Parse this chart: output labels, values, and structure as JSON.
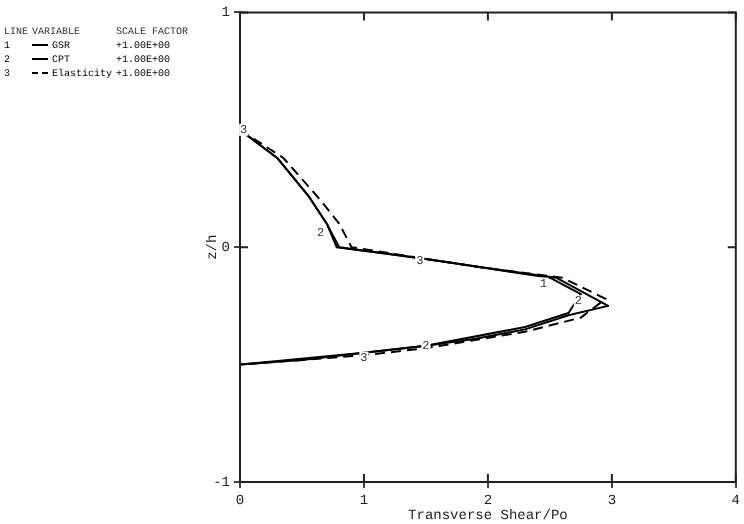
{
  "chart_data": {
    "type": "line",
    "xlabel": "Transverse Shear/Po",
    "ylabel": "z/h",
    "xlim": [
      0,
      4
    ],
    "xticks": [
      0,
      1,
      2,
      3,
      4
    ],
    "ylim": [
      -1,
      1
    ],
    "yticks": [
      -1,
      0,
      1
    ],
    "grid": false,
    "legend": "top left",
    "marker": "none",
    "series": [
      {
        "name": "GSR",
        "color": "#000000",
        "line_style": "solid",
        "x": [
          0,
          0.3,
          0.55,
          0.7,
          0.8,
          1.5,
          2.0,
          2.55,
          2.97,
          2.65,
          2.3,
          1.9,
          1.5,
          1.0,
          0.5,
          0
        ],
        "values": [
          0.5,
          0.38,
          0.22,
          0.1,
          0.0,
          -0.05,
          -0.09,
          -0.13,
          -0.25,
          -0.29,
          -0.35,
          -0.39,
          -0.42,
          -0.45,
          -0.48,
          -0.5
        ]
      },
      {
        "name": "CPT",
        "color": "#000000",
        "line_style": "solid",
        "x": [
          0,
          0.3,
          0.55,
          0.7,
          0.78,
          1.5,
          2.0,
          2.5,
          2.75,
          2.65,
          2.3,
          1.5,
          1.0,
          0
        ],
        "values": [
          0.5,
          0.38,
          0.22,
          0.1,
          0.0,
          -0.05,
          -0.09,
          -0.13,
          -0.2,
          -0.28,
          -0.34,
          -0.42,
          -0.45,
          -0.5
        ]
      },
      {
        "name": "Elasticity",
        "color": "#000000",
        "line_style": "dashed",
        "x": [
          0,
          0.35,
          0.65,
          0.8,
          0.9,
          1.5,
          2.0,
          2.6,
          2.95,
          2.75,
          2.3,
          1.5,
          1.0,
          0
        ],
        "values": [
          0.5,
          0.38,
          0.2,
          0.1,
          0.0,
          -0.05,
          -0.09,
          -0.13,
          -0.22,
          -0.3,
          -0.36,
          -0.43,
          -0.46,
          -0.5
        ]
      }
    ],
    "annotations": [
      "LINE",
      "VARIABLE",
      "SCALE FACTOR",
      "1",
      "+1.00E+00",
      "2",
      "+1.00E+00",
      "3",
      "+1.00E+00",
      {
        "text": "3",
        "x": 0.03,
        "y": 0.5
      },
      {
        "text": "2",
        "x": 0.65,
        "y": 0.06
      },
      {
        "text": "3",
        "x": 1.45,
        "y": -0.06
      },
      {
        "text": "1",
        "x": 2.45,
        "y": -0.155
      },
      {
        "text": "2",
        "x": 2.73,
        "y": -0.23
      },
      {
        "text": "2",
        "x": 1.5,
        "y": -0.42
      },
      {
        "text": "3",
        "x": 1.0,
        "y": -0.47
      }
    ]
  }
}
